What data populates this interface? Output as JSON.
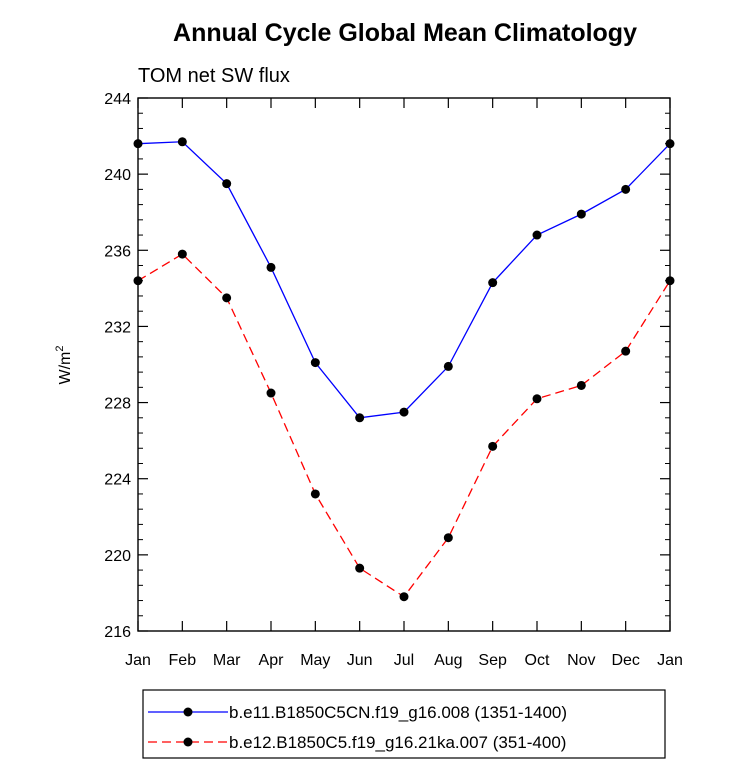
{
  "chart_data": {
    "type": "line",
    "title": "Annual Cycle Global Mean Climatology",
    "subtitle": "TOM net SW flux",
    "xlabel": "",
    "ylabel": "W/m",
    "ylabel_superscript": "2",
    "categories": [
      "Jan",
      "Feb",
      "Mar",
      "Apr",
      "May",
      "Jun",
      "Jul",
      "Aug",
      "Sep",
      "Oct",
      "Nov",
      "Dec",
      "Jan"
    ],
    "ylim": [
      216,
      244
    ],
    "yticks": [
      216,
      220,
      224,
      228,
      232,
      236,
      240,
      244
    ],
    "grid": false,
    "legend_position": "bottom",
    "series": [
      {
        "name": "b.e11.B1850C5CN.f19_g16.008 (1351-1400)",
        "color": "#0000ff",
        "dash": "solid",
        "marker": "filled-circle",
        "values": [
          241.6,
          241.7,
          239.5,
          235.1,
          230.1,
          227.2,
          227.5,
          229.9,
          234.3,
          236.8,
          237.9,
          239.2,
          241.6
        ]
      },
      {
        "name": "b.e12.B1850C5.f19_g16.21ka.007 (351-400)",
        "color": "#ff0000",
        "dash": "dashed",
        "marker": "filled-circle",
        "values": [
          234.4,
          235.8,
          233.5,
          228.5,
          223.2,
          219.3,
          217.8,
          220.9,
          225.7,
          228.2,
          228.9,
          230.7,
          234.4
        ]
      }
    ]
  }
}
